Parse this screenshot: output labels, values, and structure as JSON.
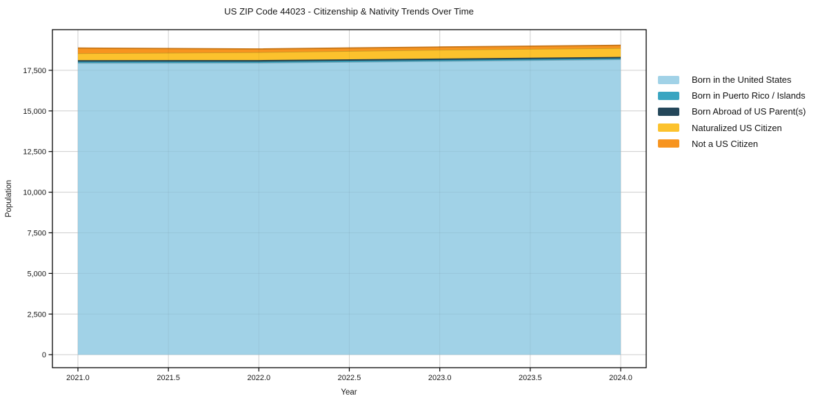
{
  "title": "US ZIP Code 44023 - Citizenship & Nativity Trends Over Time",
  "chart_data": {
    "type": "area",
    "stacked": true,
    "title": "US ZIP Code 44023 - Citizenship & Nativity Trends Over Time",
    "xlabel": "Year",
    "ylabel": "Population",
    "x": [
      2021,
      2022,
      2023,
      2024
    ],
    "series": [
      {
        "name": "Born in the United States",
        "color": "#a1d2e7",
        "values": [
          17950,
          17960,
          18060,
          18170
        ]
      },
      {
        "name": "Born in Puerto Rico / Islands",
        "color": "#3aa5c1",
        "values": [
          85,
          80,
          75,
          70
        ]
      },
      {
        "name": "Born Abroad of US Parent(s)",
        "color": "#24475a",
        "values": [
          90,
          90,
          85,
          85
        ]
      },
      {
        "name": "Naturalized US Citizen",
        "color": "#fcc22d",
        "values": [
          420,
          480,
          540,
          540
        ]
      },
      {
        "name": "Not a US Citizen",
        "color": "#f7941f",
        "values": [
          320,
          200,
          170,
          170
        ]
      }
    ],
    "xlim": [
      2020.859,
      2024.141
    ],
    "ylim": [
      -800,
      20000
    ],
    "xticks": [
      2021.0,
      2021.5,
      2022.0,
      2022.5,
      2023.0,
      2023.5,
      2024.0
    ],
    "xtick_labels": [
      "2021.0",
      "2021.5",
      "2022.0",
      "2022.5",
      "2023.0",
      "2023.5",
      "2024.0"
    ],
    "yticks": [
      0,
      2500,
      5000,
      7500,
      10000,
      12500,
      15000,
      17500
    ],
    "ytick_labels": [
      "0",
      "2,500",
      "5,000",
      "7,500",
      "10,000",
      "12,500",
      "15,000",
      "17,500"
    ],
    "grid": true,
    "grid_color": "#d9d9d9",
    "frame_color": "#000000",
    "legend_position": "right-outside"
  }
}
